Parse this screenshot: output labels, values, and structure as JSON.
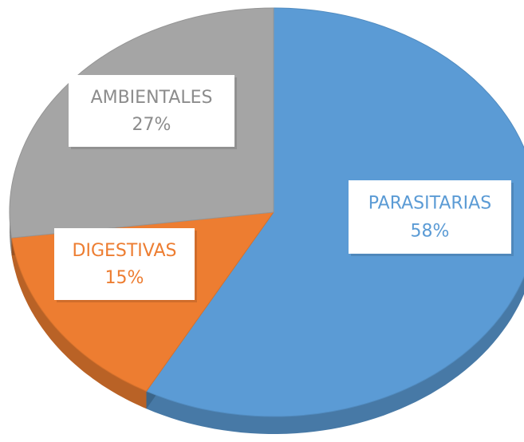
{
  "chart_data": {
    "type": "pie",
    "categories": [
      "PARASITARIAS",
      "DIGESTIVAS",
      "AMBIENTALES"
    ],
    "values": [
      58,
      15,
      27
    ],
    "value_labels": [
      "58%",
      "15%",
      "27%"
    ],
    "colors": [
      "#5b9bd5",
      "#ed7d31",
      "#a5a5a5"
    ]
  }
}
